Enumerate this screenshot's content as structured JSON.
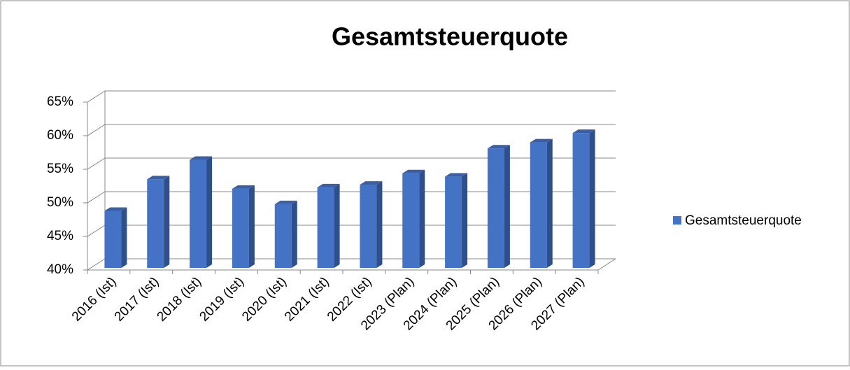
{
  "chart_data": {
    "type": "bar3d",
    "title": "Gesamtsteuerquote",
    "categories": [
      "2016 (Ist)",
      "2017 (Ist)",
      "2018 (Ist)",
      "2019 (Ist)",
      "2020 (Ist)",
      "2021 (Ist)",
      "2022 (Ist)",
      "2023 (Plan)",
      "2024 (Plan)",
      "2025 (Plan)",
      "2026 (Plan)",
      "2027 (Plan)"
    ],
    "series": [
      {
        "name": "Gesamtsteuerquote",
        "color": "#4472c4",
        "values": [
          48.8,
          53.5,
          56.4,
          52.1,
          49.8,
          52.3,
          52.7,
          54.4,
          53.9,
          58.1,
          59.0,
          60.4
        ]
      }
    ],
    "ylim": [
      40,
      65
    ],
    "yticks": [
      {
        "value": 40,
        "label": "40%"
      },
      {
        "value": 45,
        "label": "45%"
      },
      {
        "value": 50,
        "label": "50%"
      },
      {
        "value": 55,
        "label": "55%"
      },
      {
        "value": 60,
        "label": "60%"
      },
      {
        "value": 65,
        "label": "65%"
      }
    ],
    "grid": true,
    "legend": "right"
  }
}
